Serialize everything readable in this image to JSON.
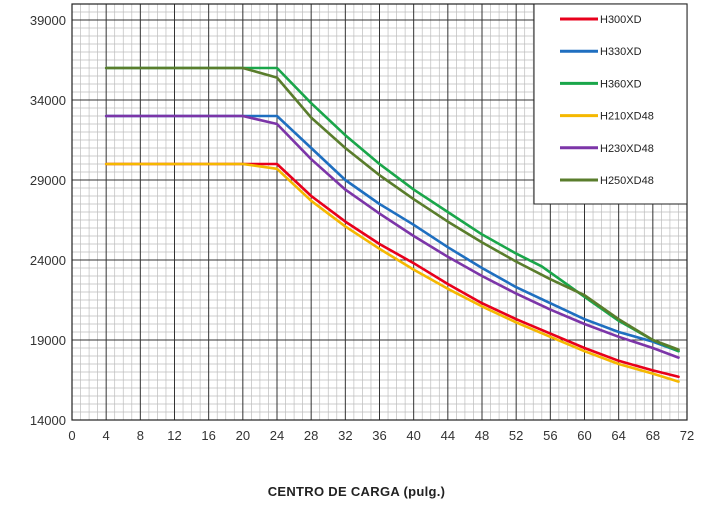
{
  "chart_data": {
    "type": "line",
    "title": "",
    "xlabel": "CENTRO DE CARGA (pulg.)",
    "ylabel": "",
    "xlim": [
      0,
      72
    ],
    "ylim": [
      14000,
      40000
    ],
    "x_ticks": [
      0,
      4,
      8,
      12,
      16,
      20,
      24,
      28,
      32,
      36,
      40,
      44,
      48,
      52,
      56,
      60,
      64,
      68,
      72
    ],
    "y_ticks": [
      14000,
      19000,
      24000,
      29000,
      34000,
      39000
    ],
    "grid": true,
    "legend_position": "top-right",
    "series": [
      {
        "name": "H300XD",
        "color": "#e8001c",
        "points": [
          [
            4,
            30000
          ],
          [
            20,
            30000
          ],
          [
            24,
            30000
          ],
          [
            28,
            28000
          ],
          [
            32,
            26400
          ],
          [
            36,
            25000
          ],
          [
            40,
            23800
          ],
          [
            44,
            22500
          ],
          [
            48,
            21300
          ],
          [
            52,
            20300
          ],
          [
            56,
            19400
          ],
          [
            60,
            18500
          ],
          [
            64,
            17700
          ],
          [
            68,
            17100
          ],
          [
            71,
            16700
          ]
        ]
      },
      {
        "name": "H330XD",
        "color": "#1f6fc0",
        "points": [
          [
            4,
            33000
          ],
          [
            20,
            33000
          ],
          [
            24,
            33000
          ],
          [
            28,
            31000
          ],
          [
            32,
            29000
          ],
          [
            36,
            27500
          ],
          [
            40,
            26200
          ],
          [
            44,
            24800
          ],
          [
            48,
            23500
          ],
          [
            52,
            22300
          ],
          [
            56,
            21300
          ],
          [
            60,
            20300
          ],
          [
            64,
            19500
          ],
          [
            68,
            18900
          ],
          [
            71,
            18300
          ]
        ]
      },
      {
        "name": "H360XD",
        "color": "#1aa64a",
        "points": [
          [
            4,
            36000
          ],
          [
            20,
            36000
          ],
          [
            24,
            36000
          ],
          [
            28,
            33800
          ],
          [
            32,
            31800
          ],
          [
            36,
            30000
          ],
          [
            40,
            28400
          ],
          [
            44,
            27000
          ],
          [
            48,
            25600
          ],
          [
            52,
            24400
          ],
          [
            55,
            23600
          ],
          [
            60,
            21700
          ],
          [
            64,
            20200
          ],
          [
            68,
            19000
          ],
          [
            71,
            18300
          ]
        ]
      },
      {
        "name": "H210XD48",
        "color": "#f5b800",
        "points": [
          [
            4,
            30000
          ],
          [
            20,
            30000
          ],
          [
            24,
            29700
          ],
          [
            28,
            27700
          ],
          [
            32,
            26100
          ],
          [
            36,
            24700
          ],
          [
            40,
            23400
          ],
          [
            44,
            22200
          ],
          [
            48,
            21100
          ],
          [
            52,
            20100
          ],
          [
            56,
            19200
          ],
          [
            60,
            18300
          ],
          [
            64,
            17500
          ],
          [
            68,
            16900
          ],
          [
            71,
            16400
          ]
        ]
      },
      {
        "name": "H230XD48",
        "color": "#7c35a8",
        "points": [
          [
            4,
            33000
          ],
          [
            20,
            33000
          ],
          [
            24,
            32500
          ],
          [
            28,
            30300
          ],
          [
            32,
            28400
          ],
          [
            36,
            26900
          ],
          [
            40,
            25500
          ],
          [
            44,
            24200
          ],
          [
            48,
            23000
          ],
          [
            52,
            21900
          ],
          [
            56,
            20900
          ],
          [
            60,
            20000
          ],
          [
            64,
            19200
          ],
          [
            68,
            18500
          ],
          [
            71,
            17900
          ]
        ]
      },
      {
        "name": "H250XD48",
        "color": "#5a7d2c",
        "points": [
          [
            4,
            36000
          ],
          [
            20,
            36000
          ],
          [
            24,
            35400
          ],
          [
            28,
            32900
          ],
          [
            32,
            31000
          ],
          [
            36,
            29300
          ],
          [
            40,
            27800
          ],
          [
            44,
            26400
          ],
          [
            48,
            25100
          ],
          [
            52,
            23900
          ],
          [
            56,
            22800
          ],
          [
            60,
            21800
          ],
          [
            64,
            20300
          ],
          [
            68,
            19000
          ],
          [
            71,
            18400
          ]
        ]
      }
    ]
  }
}
